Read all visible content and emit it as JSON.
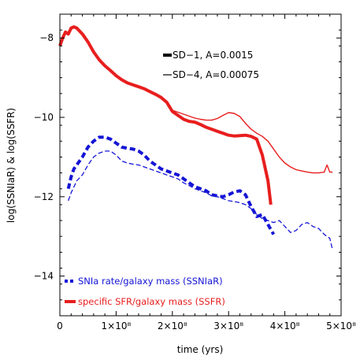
{
  "chart_data": {
    "type": "line",
    "xlabel": "time (yrs)",
    "ylabel": "log(SSNIaR) & log(SSFR)",
    "xlim": [
      0,
      500000000
    ],
    "ylim": [
      -15,
      -7.4
    ],
    "x_tick_values": [
      0,
      100000000,
      200000000,
      300000000,
      400000000,
      500000000
    ],
    "x_tick_labels": [
      "0",
      "1×10⁸",
      "2×10⁸",
      "3×10⁸",
      "4×10⁸",
      "5×10⁸"
    ],
    "y_tick_values": [
      -14,
      -12,
      -10,
      -8
    ],
    "y_tick_labels": [
      "−14",
      "−12",
      "−10",
      "−8"
    ],
    "top_legend": [
      {
        "label": "SD−1,  A=0.0015",
        "style": "thick"
      },
      {
        "label": "SD−4,  A=0.00075",
        "style": "thin"
      }
    ],
    "bottom_legend": [
      {
        "label": "SNIa rate/galaxy mass (SSNIaR)",
        "color": "#1515d6",
        "style": "dash"
      },
      {
        "label": "specific SFR/galaxy mass (SSFR)",
        "color": "#e81e1e",
        "style": "solid"
      }
    ],
    "series": [
      {
        "name": "SSFR (SD−1)",
        "color": "#e81e1e",
        "dash": "solid",
        "width": 4,
        "x": [
          0,
          5000000,
          10000000,
          15000000,
          20000000,
          25000000,
          30000000,
          40000000,
          50000000,
          60000000,
          70000000,
          80000000,
          90000000,
          100000000,
          110000000,
          120000000,
          130000000,
          140000000,
          150000000,
          160000000,
          170000000,
          180000000,
          190000000,
          200000000,
          210000000,
          220000000,
          230000000,
          240000000,
          250000000,
          260000000,
          270000000,
          280000000,
          290000000,
          300000000,
          310000000,
          320000000,
          330000000,
          340000000,
          350000000,
          360000000,
          370000000,
          375000000
        ],
        "y": [
          -8.2,
          -8.0,
          -7.85,
          -7.9,
          -7.75,
          -7.72,
          -7.75,
          -7.9,
          -8.1,
          -8.35,
          -8.55,
          -8.7,
          -8.82,
          -8.95,
          -9.05,
          -9.13,
          -9.18,
          -9.23,
          -9.28,
          -9.35,
          -9.42,
          -9.5,
          -9.62,
          -9.85,
          -9.95,
          -10.05,
          -10.1,
          -10.12,
          -10.18,
          -10.25,
          -10.3,
          -10.35,
          -10.4,
          -10.45,
          -10.47,
          -10.46,
          -10.45,
          -10.48,
          -10.55,
          -10.95,
          -11.6,
          -12.2
        ]
      },
      {
        "name": "SSFR (SD−4)",
        "color": "#e81e1e",
        "dash": "solid",
        "width": 1.4,
        "x": [
          200000000,
          210000000,
          220000000,
          230000000,
          240000000,
          250000000,
          260000000,
          270000000,
          280000000,
          290000000,
          300000000,
          310000000,
          320000000,
          330000000,
          340000000,
          350000000,
          360000000,
          370000000,
          380000000,
          390000000,
          400000000,
          410000000,
          420000000,
          430000000,
          440000000,
          450000000,
          460000000,
          470000000,
          475000000,
          480000000,
          485000000
        ],
        "y": [
          -9.82,
          -9.87,
          -9.92,
          -9.97,
          -10.02,
          -10.05,
          -10.07,
          -10.07,
          -10.03,
          -9.95,
          -9.88,
          -9.9,
          -9.98,
          -10.15,
          -10.3,
          -10.4,
          -10.48,
          -10.6,
          -10.8,
          -11.0,
          -11.15,
          -11.25,
          -11.32,
          -11.35,
          -11.38,
          -11.4,
          -11.4,
          -11.38,
          -11.2,
          -11.38,
          -11.38
        ]
      },
      {
        "name": "SSNIaR (SD−1)",
        "color": "#1515d6",
        "dash": "dash",
        "width": 4,
        "x": [
          15000000,
          20000000,
          25000000,
          30000000,
          40000000,
          50000000,
          60000000,
          70000000,
          80000000,
          90000000,
          100000000,
          110000000,
          120000000,
          130000000,
          140000000,
          150000000,
          160000000,
          170000000,
          180000000,
          190000000,
          200000000,
          210000000,
          220000000,
          230000000,
          240000000,
          250000000,
          260000000,
          270000000,
          280000000,
          290000000,
          300000000,
          310000000,
          320000000,
          330000000,
          340000000,
          350000000,
          360000000,
          370000000,
          380000000
        ],
        "y": [
          -11.8,
          -11.5,
          -11.3,
          -11.2,
          -11.0,
          -10.75,
          -10.6,
          -10.5,
          -10.5,
          -10.55,
          -10.65,
          -10.75,
          -10.78,
          -10.8,
          -10.85,
          -10.95,
          -11.1,
          -11.2,
          -11.3,
          -11.35,
          -11.4,
          -11.45,
          -11.55,
          -11.65,
          -11.75,
          -11.8,
          -11.85,
          -11.95,
          -11.98,
          -12.0,
          -11.95,
          -11.88,
          -11.85,
          -11.95,
          -12.25,
          -12.5,
          -12.45,
          -12.7,
          -12.95
        ]
      },
      {
        "name": "SSNIaR (SD−4)",
        "color": "#1515d6",
        "dash": "dash",
        "width": 1.3,
        "x": [
          15000000,
          20000000,
          30000000,
          40000000,
          50000000,
          60000000,
          70000000,
          80000000,
          90000000,
          100000000,
          110000000,
          120000000,
          130000000,
          140000000,
          150000000,
          160000000,
          170000000,
          180000000,
          190000000,
          200000000,
          210000000,
          220000000,
          230000000,
          240000000,
          250000000,
          260000000,
          270000000,
          280000000,
          290000000,
          300000000,
          310000000,
          320000000,
          330000000,
          340000000,
          350000000,
          360000000,
          370000000,
          380000000,
          390000000,
          400000000,
          410000000,
          420000000,
          430000000,
          440000000,
          450000000,
          460000000,
          470000000,
          480000000,
          485000000
        ],
        "y": [
          -12.1,
          -11.9,
          -11.6,
          -11.45,
          -11.2,
          -11.0,
          -10.9,
          -10.85,
          -10.85,
          -10.95,
          -11.1,
          -11.15,
          -11.18,
          -11.2,
          -11.25,
          -11.3,
          -11.35,
          -11.4,
          -11.45,
          -11.5,
          -11.55,
          -11.65,
          -11.72,
          -11.8,
          -11.85,
          -11.9,
          -11.98,
          -12.0,
          -12.05,
          -12.1,
          -12.12,
          -12.15,
          -12.2,
          -12.3,
          -12.45,
          -12.55,
          -12.6,
          -12.65,
          -12.6,
          -12.75,
          -12.9,
          -12.85,
          -12.7,
          -12.65,
          -12.75,
          -12.8,
          -12.95,
          -13.05,
          -13.35
        ]
      }
    ]
  }
}
